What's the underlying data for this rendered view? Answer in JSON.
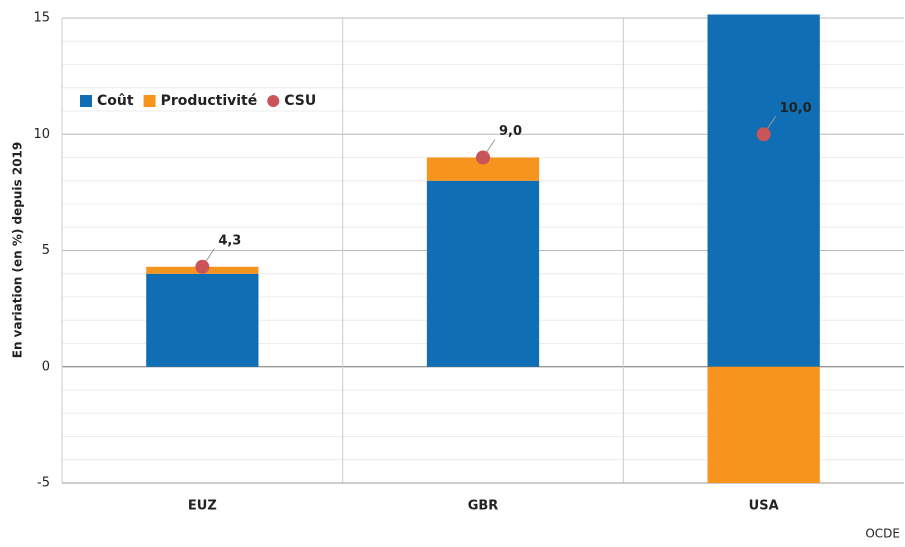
{
  "chart_data": {
    "type": "bar",
    "y_axis_label": "En variation (en %) depuis 2019",
    "source": "OCDE",
    "categories": [
      "EUZ",
      "GBR",
      "USA"
    ],
    "series": [
      {
        "name": "Coût",
        "color": "#0f6eb4",
        "values": [
          4.0,
          8.0,
          15.15
        ]
      },
      {
        "name": "Productivité",
        "color": "#f7941d",
        "values": [
          0.3,
          1.0,
          -5.0
        ]
      },
      {
        "name": "CSU",
        "type": "dot",
        "color": "#c9545a",
        "values": [
          4.3,
          9.0,
          10.0
        ],
        "value_labels": [
          "4,3",
          "9,0",
          "10,0"
        ]
      }
    ],
    "ylim": [
      -5,
      15.15
    ],
    "yticks": [
      -5,
      0,
      5,
      10,
      15
    ],
    "minor_grid_step": 1,
    "grid": true,
    "legend": "top-left"
  }
}
